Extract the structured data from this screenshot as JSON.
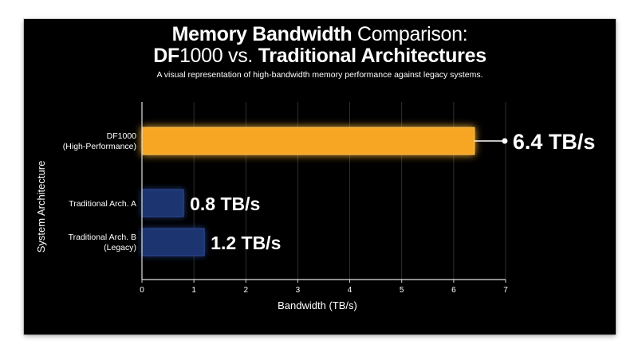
{
  "chart_data": {
    "type": "bar",
    "orientation": "horizontal",
    "title": {
      "line1_bold": "Memory Bandwidth",
      "line1_rest": " Comparison:",
      "line2_bold_1": "DF",
      "line2_rest_1": "1000 vs. ",
      "line2_bold_2": "Traditional Architectures"
    },
    "subtitle": "A visual representation of high-bandwidth memory performance against legacy systems.",
    "xlabel": "Bandwidth (TB/s)",
    "ylabel": "System Architecture",
    "xlim": [
      0,
      7
    ],
    "xticks": [
      "0",
      "1",
      "2",
      "3",
      "4",
      "5",
      "6",
      "7"
    ],
    "grid": true,
    "categories": [
      {
        "line1": "DF1000",
        "line2": "(High-Performance)"
      },
      {
        "line1": "Traditional Arch. A",
        "line2": ""
      },
      {
        "line1": "Traditional Arch. B",
        "line2": "(Legacy)"
      }
    ],
    "values": [
      6.4,
      0.8,
      1.2
    ],
    "value_labels": [
      "6.4 TB/s",
      "0.8 TB/s",
      "1.2 TB/s"
    ],
    "colors": {
      "highlight": "#f6a623",
      "legacy": "#1d3470",
      "legacy_edge": "#2e4a96"
    }
  }
}
